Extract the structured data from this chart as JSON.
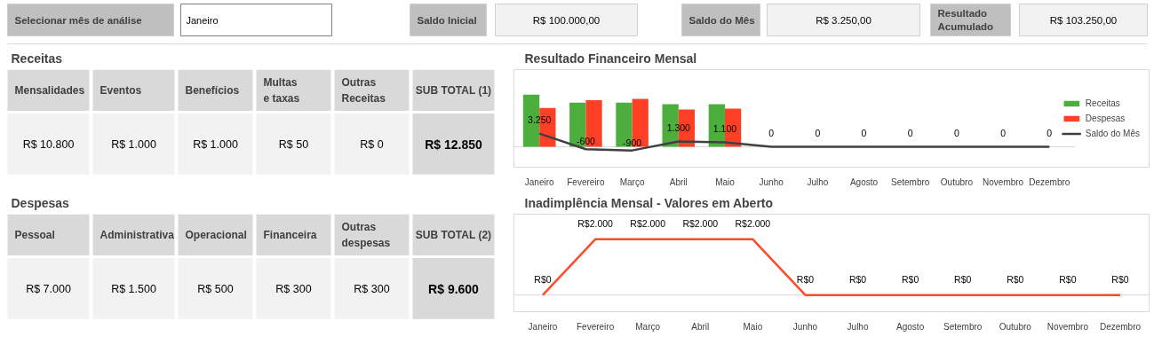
{
  "chart_data": [
    {
      "type": "other",
      "annotations": [
        "Selecionar mês de análise",
        "Janeiro",
        "Saldo Inicial",
        "R$ 100.000,00",
        "Saldo do Mês",
        "R$ 3.250,00",
        "Resultado Acumulado",
        "R$ 103.250,00"
      ]
    },
    {
      "type": "other",
      "title": "Receitas",
      "annotations": [
        "Mensalidades",
        "Eventos",
        "Benefícios",
        "Multas e taxas",
        "Outras Receitas",
        "SUB TOTAL (1)",
        "R$ 10.800",
        "R$ 1.000",
        "R$ 1.000",
        "R$ 50",
        "R$ 0",
        "R$ 12.850"
      ]
    },
    {
      "type": "other",
      "title": "Despesas",
      "annotations": [
        "Pessoal",
        "Administrativa",
        "Operacional",
        "Financeira",
        "Outras despesas",
        "SUB TOTAL (2)",
        "R$ 7.000",
        "R$ 1.500",
        "R$ 500",
        "R$ 300",
        "R$ 300",
        "R$ 9.600"
      ]
    },
    {
      "type": "bar",
      "title": "Resultado Financeiro Mensal",
      "categories": [
        "Janeiro",
        "Fevereiro",
        "Março",
        "Abril",
        "Maio",
        "Junho",
        "Julho",
        "Agosto",
        "Setembro",
        "Outubro",
        "Novembro",
        "Dezembro"
      ],
      "tick_labels": "x",
      "legend": "right",
      "series": [
        {
          "name": "Receitas",
          "type": "bar",
          "color": "#4cae3c",
          "values": [
            12850,
            10900,
            10900,
            10500,
            10500,
            0,
            0,
            0,
            0,
            0,
            0,
            0
          ]
        },
        {
          "name": "Despesas",
          "type": "bar",
          "color": "#ff4026",
          "values": [
            9600,
            11500,
            11800,
            9200,
            9400,
            0,
            0,
            0,
            0,
            0,
            0,
            0
          ]
        },
        {
          "name": "Saldo do Mês",
          "type": "line",
          "color": "#404040",
          "values": [
            3250,
            -600,
            -900,
            1300,
            1100,
            0,
            0,
            0,
            0,
            0,
            0,
            0
          ],
          "value_labels": [
            "3.250",
            "-600",
            "-900",
            "1.300",
            "1.100",
            "0",
            "0",
            "0",
            "0",
            "0",
            "0",
            "0"
          ]
        }
      ]
    },
    {
      "type": "line",
      "title": "Inadimplência Mensal - Valores em Aberto",
      "categories": [
        "Janeiro",
        "Fevereiro",
        "Março",
        "Abril",
        "Maio",
        "Junho",
        "Julho",
        "Agosto",
        "Setembro",
        "Outubro",
        "Novembro",
        "Dezembro"
      ],
      "tick_labels": "x",
      "series": [
        {
          "color": "#ff4b2b",
          "values": [
            0,
            2000,
            2000,
            2000,
            2000,
            0,
            0,
            0,
            0,
            0,
            0,
            0
          ],
          "value_labels": [
            "R$0",
            "R$2.000",
            "R$2.000",
            "R$2.000",
            "R$2.000",
            "R$0",
            "R$0",
            "R$0",
            "R$0",
            "R$0",
            "R$0",
            "R$0"
          ]
        }
      ]
    }
  ]
}
